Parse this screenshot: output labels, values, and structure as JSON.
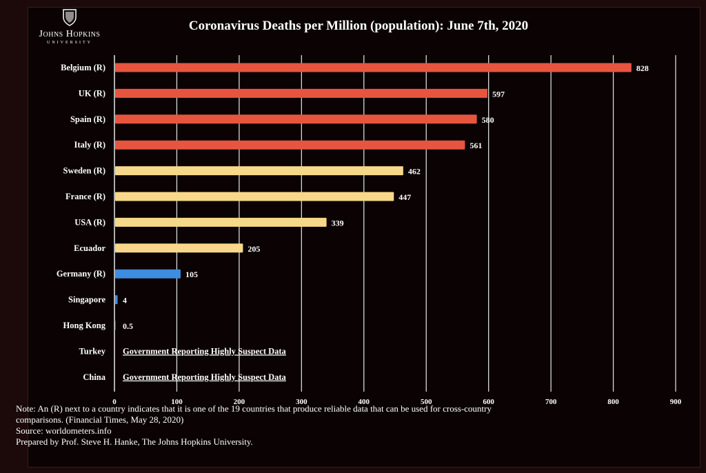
{
  "logo": {
    "name": "Johns Hopkins",
    "sub": "UNIVERSITY"
  },
  "chart_data": {
    "type": "bar",
    "orientation": "horizontal",
    "title": "Coronavirus Deaths per Million (population): June 7th, 2020",
    "xlim": [
      0,
      900
    ],
    "xticks": [
      0,
      100,
      200,
      300,
      400,
      500,
      600,
      700,
      800,
      900
    ],
    "grid": true,
    "categories": [
      "Belgium (R)",
      "UK (R)",
      "Spain (R)",
      "Italy (R)",
      "Sweden (R)",
      "France (R)",
      "USA (R)",
      "Ecuador",
      "Germany (R)",
      "Singapore",
      "Hong Kong",
      "Turkey",
      "China"
    ],
    "values": [
      828,
      597,
      580,
      561,
      462,
      447,
      339,
      205,
      105,
      4,
      0.5,
      null,
      null
    ],
    "value_labels": [
      "828",
      "597",
      "580",
      "561",
      "462",
      "447",
      "339",
      "205",
      "105",
      "4",
      "0.5",
      "Government Reporting Highly Suspect Data",
      "Government Reporting Highly Suspect Data"
    ],
    "bar_colors": [
      "#e8553f",
      "#e8553f",
      "#e8553f",
      "#e8553f",
      "#f7d88a",
      "#f7d88a",
      "#f7d88a",
      "#f7d88a",
      "#3d8de0",
      "#3d8de0",
      "#3d8de0",
      null,
      null
    ]
  },
  "notes": {
    "line1": "Note: An (R) next to a country indicates that it is one of the 19 countries that produce reliable data that can be used for cross-country",
    "line2": "comparisons. (Financial Times, May 28, 2020)",
    "line3": "Source: worldometers.info",
    "line4": "Prepared by Prof. Steve H. Hanke, The Johns Hopkins University."
  }
}
